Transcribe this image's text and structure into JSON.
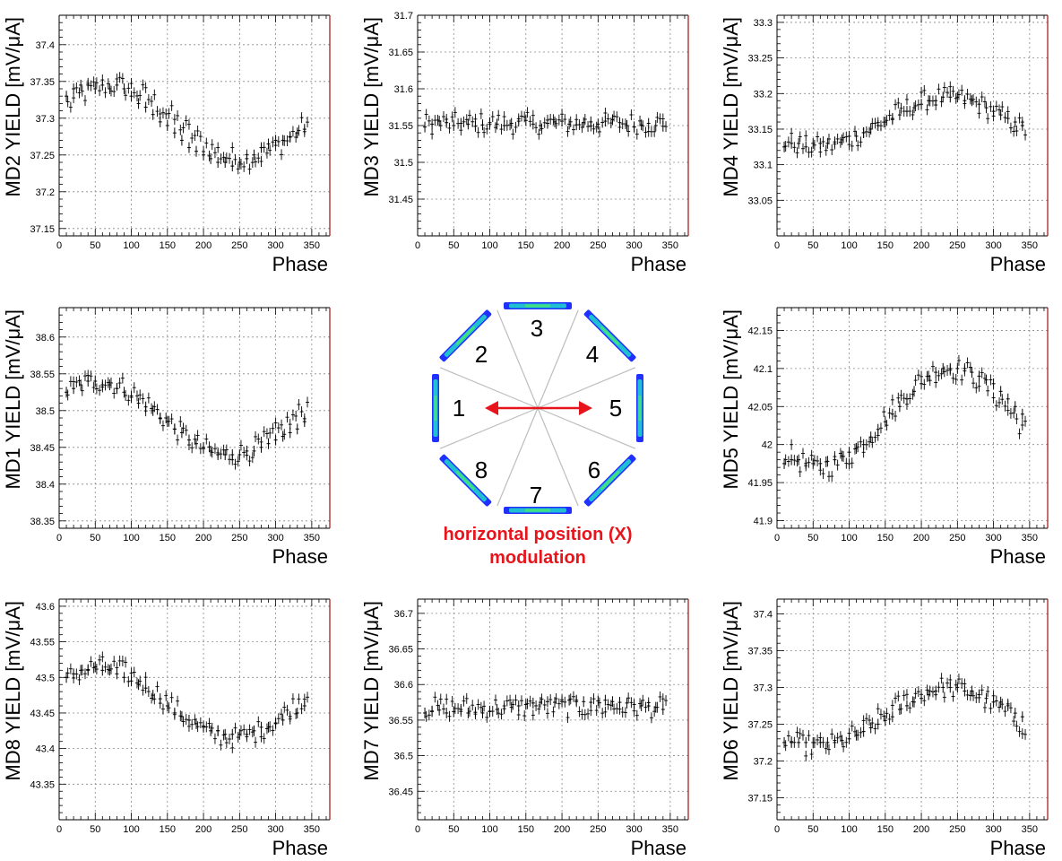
{
  "chart_data": [
    {
      "type": "scatter",
      "panel": "MD2",
      "ylabel": "MD2 YIELD [mV/μA]",
      "xlabel": "Phase",
      "xlim": [
        0,
        375
      ],
      "ylim": [
        37.14,
        37.44
      ],
      "xticks": [
        0,
        50,
        100,
        150,
        200,
        250,
        300,
        350
      ],
      "yticks": [
        37.15,
        37.2,
        37.25,
        37.3,
        37.35,
        37.4
      ],
      "ytick_labels": [
        "37.15",
        "37.2",
        "37.25",
        "37.3",
        "37.35",
        "37.4"
      ],
      "grid": true,
      "error_bars": true,
      "shape": {
        "kind": "cos",
        "a": 37.295,
        "b": 0.05,
        "phi": 75
      },
      "x": [
        10,
        20,
        30,
        40,
        50,
        60,
        70,
        80,
        90,
        100,
        110,
        120,
        130,
        140,
        150,
        160,
        170,
        180,
        190,
        200,
        210,
        220,
        230,
        240,
        250,
        260,
        270,
        280,
        290,
        300,
        310,
        320,
        330,
        340
      ],
      "y": [
        37.33,
        37.34,
        37.345,
        37.345,
        37.34,
        37.345,
        37.34,
        37.345,
        37.34,
        37.33,
        37.32,
        37.315,
        37.305,
        37.295,
        37.29,
        37.28,
        37.27,
        37.26,
        37.255,
        37.25,
        37.245,
        37.24,
        37.24,
        37.235,
        37.24,
        37.245,
        37.25,
        37.26,
        37.265,
        37.27,
        37.27,
        37.275,
        37.28,
        37.285
      ]
    },
    {
      "type": "scatter",
      "panel": "MD3",
      "ylabel": "MD3 YIELD [mV/μA]",
      "xlabel": "Phase",
      "xlim": [
        0,
        375
      ],
      "ylim": [
        31.4,
        31.7
      ],
      "xticks": [
        0,
        50,
        100,
        150,
        200,
        250,
        300,
        350
      ],
      "yticks": [
        31.45,
        31.5,
        31.55,
        31.6,
        31.65,
        31.7
      ],
      "ytick_labels": [
        "31.45",
        "31.5",
        "31.55",
        "31.6",
        "31.65",
        "31.7"
      ],
      "grid": true,
      "error_bars": true,
      "shape": {
        "kind": "flat",
        "a": 31.553
      },
      "x": [
        10,
        20,
        30,
        40,
        50,
        60,
        70,
        80,
        90,
        100,
        110,
        120,
        130,
        140,
        150,
        160,
        170,
        180,
        190,
        200,
        210,
        220,
        230,
        240,
        250,
        260,
        270,
        280,
        290,
        300,
        310,
        320,
        330,
        340
      ],
      "y": [
        31.548,
        31.552,
        31.556,
        31.554,
        31.55,
        31.553,
        31.552,
        31.549,
        31.551,
        31.554,
        31.552,
        31.55,
        31.553,
        31.556,
        31.557,
        31.552,
        31.55,
        31.553,
        31.555,
        31.556,
        31.552,
        31.551,
        31.554,
        31.555,
        31.552,
        31.556,
        31.558,
        31.554,
        31.55,
        31.548,
        31.551,
        31.553,
        31.55,
        31.549
      ]
    },
    {
      "type": "scatter",
      "panel": "MD4",
      "ylabel": "MD4 YIELD [mV/μA]",
      "xlabel": "Phase",
      "xlim": [
        0,
        375
      ],
      "ylim": [
        33.0,
        33.31
      ],
      "xticks": [
        0,
        50,
        100,
        150,
        200,
        250,
        300,
        350
      ],
      "yticks": [
        33.05,
        33.1,
        33.15,
        33.2,
        33.25,
        33.3
      ],
      "ytick_labels": [
        "33.05",
        "33.1",
        "33.15",
        "33.2",
        "33.25",
        "33.3"
      ],
      "grid": true,
      "error_bars": true,
      "shape": {
        "kind": "cos",
        "a": 33.16,
        "b": 0.035,
        "phi": 235
      },
      "x": [
        10,
        20,
        30,
        40,
        50,
        60,
        70,
        80,
        90,
        100,
        110,
        120,
        130,
        140,
        150,
        160,
        170,
        180,
        190,
        200,
        210,
        220,
        230,
        240,
        250,
        260,
        270,
        280,
        290,
        300,
        310,
        320,
        330,
        340
      ],
      "y": [
        33.125,
        33.13,
        33.13,
        33.125,
        33.13,
        33.13,
        33.13,
        33.132,
        33.135,
        33.14,
        33.14,
        33.145,
        33.15,
        33.155,
        33.16,
        33.165,
        33.17,
        33.175,
        33.18,
        33.185,
        33.19,
        33.19,
        33.195,
        33.195,
        33.195,
        33.19,
        33.19,
        33.185,
        33.18,
        33.175,
        33.17,
        33.165,
        33.16,
        33.155
      ]
    },
    {
      "type": "scatter",
      "panel": "MD1",
      "ylabel": "MD1 YIELD [mV/μA]",
      "xlabel": "Phase",
      "xlim": [
        0,
        375
      ],
      "ylim": [
        38.34,
        38.64
      ],
      "xticks": [
        0,
        50,
        100,
        150,
        200,
        250,
        300,
        350
      ],
      "yticks": [
        38.35,
        38.4,
        38.45,
        38.5,
        38.55,
        38.6
      ],
      "ytick_labels": [
        "38.35",
        "38.4",
        "38.45",
        "38.5",
        "38.55",
        "38.6"
      ],
      "grid": true,
      "error_bars": true,
      "shape": {
        "kind": "cos",
        "a": 38.49,
        "b": 0.05,
        "phi": 55
      },
      "x": [
        10,
        20,
        30,
        40,
        50,
        60,
        70,
        80,
        90,
        100,
        110,
        120,
        130,
        140,
        150,
        160,
        170,
        180,
        190,
        200,
        210,
        220,
        230,
        240,
        250,
        260,
        270,
        280,
        290,
        300,
        310,
        320,
        330,
        340
      ],
      "y": [
        38.525,
        38.53,
        38.535,
        38.54,
        38.54,
        38.535,
        38.535,
        38.53,
        38.525,
        38.52,
        38.51,
        38.505,
        38.5,
        38.49,
        38.485,
        38.475,
        38.47,
        38.46,
        38.455,
        38.45,
        38.445,
        38.44,
        38.44,
        38.44,
        38.44,
        38.445,
        38.445,
        38.45,
        38.455,
        38.46,
        38.465,
        38.47,
        38.475,
        38.485
      ]
    },
    {
      "type": "scatter",
      "panel": "MD5",
      "ylabel": "MD5 YIELD [mV/μA]",
      "xlabel": "Phase",
      "xlim": [
        0,
        375
      ],
      "ylim": [
        41.89,
        42.18
      ],
      "xticks": [
        0,
        50,
        100,
        150,
        200,
        250,
        300,
        350
      ],
      "yticks": [
        41.9,
        41.95,
        42.0,
        42.05,
        42.1,
        42.15
      ],
      "ytick_labels": [
        "41.9",
        "41.95",
        "42",
        "42.05",
        "42.1",
        "42.15"
      ],
      "grid": true,
      "error_bars": true,
      "shape": {
        "kind": "cos",
        "a": 42.035,
        "b": 0.065,
        "phi": 240
      },
      "x": [
        10,
        20,
        30,
        40,
        50,
        60,
        70,
        80,
        90,
        100,
        110,
        120,
        130,
        140,
        150,
        160,
        170,
        180,
        190,
        200,
        210,
        220,
        230,
        240,
        250,
        260,
        270,
        280,
        290,
        300,
        310,
        320,
        330,
        340
      ],
      "y": [
        41.975,
        41.98,
        41.98,
        41.975,
        41.975,
        41.975,
        41.978,
        41.98,
        41.985,
        41.99,
        41.995,
        42.0,
        42.01,
        42.02,
        42.03,
        42.04,
        42.05,
        42.06,
        42.07,
        42.08,
        42.09,
        42.095,
        42.1,
        42.1,
        42.1,
        42.1,
        42.095,
        42.09,
        42.085,
        42.08,
        42.07,
        42.06,
        42.05,
        42.04
      ]
    },
    {
      "type": "scatter",
      "panel": "MD8",
      "ylabel": "MD8 YIELD [mV/μA]",
      "xlabel": "Phase",
      "xlim": [
        0,
        375
      ],
      "ylim": [
        43.3,
        43.61
      ],
      "xticks": [
        0,
        50,
        100,
        150,
        200,
        250,
        300,
        350
      ],
      "yticks": [
        43.35,
        43.4,
        43.45,
        43.5,
        43.55,
        43.6
      ],
      "ytick_labels": [
        "43.35",
        "43.4",
        "43.45",
        "43.5",
        "43.55",
        "43.6"
      ],
      "grid": true,
      "error_bars": true,
      "shape": {
        "kind": "cos",
        "a": 43.465,
        "b": 0.05,
        "phi": 60
      },
      "x": [
        10,
        20,
        30,
        40,
        50,
        60,
        70,
        80,
        90,
        100,
        110,
        120,
        130,
        140,
        150,
        160,
        170,
        180,
        190,
        200,
        210,
        220,
        230,
        240,
        250,
        260,
        270,
        280,
        290,
        300,
        310,
        320,
        330,
        340
      ],
      "y": [
        43.5,
        43.505,
        43.51,
        43.51,
        43.515,
        43.51,
        43.51,
        43.505,
        43.5,
        43.495,
        43.49,
        43.485,
        43.475,
        43.47,
        43.46,
        43.45,
        43.445,
        43.44,
        43.435,
        43.43,
        43.425,
        43.425,
        43.42,
        43.42,
        43.42,
        43.42,
        43.425,
        43.43,
        43.43,
        43.435,
        43.44,
        43.445,
        43.45,
        43.46
      ]
    },
    {
      "type": "scatter",
      "panel": "MD7",
      "ylabel": "MD7 YIELD [mV/μA]",
      "xlabel": "Phase",
      "xlim": [
        0,
        375
      ],
      "ylim": [
        36.41,
        36.72
      ],
      "xticks": [
        0,
        50,
        100,
        150,
        200,
        250,
        300,
        350
      ],
      "yticks": [
        36.45,
        36.5,
        36.55,
        36.6,
        36.65,
        36.7
      ],
      "ytick_labels": [
        "36.45",
        "36.5",
        "36.55",
        "36.6",
        "36.65",
        "36.7"
      ],
      "grid": true,
      "error_bars": true,
      "shape": {
        "kind": "flat",
        "a": 36.568
      },
      "x": [
        10,
        20,
        30,
        40,
        50,
        60,
        70,
        80,
        90,
        100,
        110,
        120,
        130,
        140,
        150,
        160,
        170,
        180,
        190,
        200,
        210,
        220,
        230,
        240,
        250,
        260,
        270,
        280,
        290,
        300,
        310,
        320,
        330,
        340
      ],
      "y": [
        36.56,
        36.562,
        36.564,
        36.56,
        36.562,
        36.565,
        36.56,
        36.561,
        36.56,
        36.562,
        36.565,
        36.566,
        36.568,
        36.57,
        36.572,
        36.574,
        36.575,
        36.576,
        36.575,
        36.576,
        36.578,
        36.578,
        36.576,
        36.575,
        36.577,
        36.578,
        36.576,
        36.575,
        36.574,
        36.572,
        36.57,
        36.57,
        36.568,
        36.565
      ]
    },
    {
      "type": "scatter",
      "panel": "MD6",
      "ylabel": "MD6 YIELD [mV/μA]",
      "xlabel": "Phase",
      "xlim": [
        0,
        375
      ],
      "ylim": [
        37.12,
        37.42
      ],
      "xticks": [
        0,
        50,
        100,
        150,
        200,
        250,
        300,
        350
      ],
      "yticks": [
        37.15,
        37.2,
        37.25,
        37.3,
        37.35,
        37.4
      ],
      "ytick_labels": [
        "37.15",
        "37.2",
        "37.25",
        "37.3",
        "37.35",
        "37.4"
      ],
      "grid": true,
      "error_bars": true,
      "shape": {
        "kind": "cos",
        "a": 37.26,
        "b": 0.04,
        "phi": 235
      },
      "x": [
        10,
        20,
        30,
        40,
        50,
        60,
        70,
        80,
        90,
        100,
        110,
        120,
        130,
        140,
        150,
        160,
        170,
        180,
        190,
        200,
        210,
        220,
        230,
        240,
        250,
        260,
        270,
        280,
        290,
        300,
        310,
        320,
        330,
        340
      ],
      "y": [
        37.225,
        37.225,
        37.225,
        37.225,
        37.225,
        37.225,
        37.225,
        37.225,
        37.228,
        37.23,
        37.235,
        37.24,
        37.245,
        37.25,
        37.255,
        37.26,
        37.27,
        37.275,
        37.28,
        37.285,
        37.29,
        37.295,
        37.3,
        37.3,
        37.3,
        37.295,
        37.295,
        37.29,
        37.285,
        37.28,
        37.28,
        37.275,
        37.265,
        37.26
      ]
    }
  ],
  "diagram": {
    "octants": [
      "1",
      "2",
      "3",
      "4",
      "5",
      "6",
      "7",
      "8"
    ],
    "caption_line1": "horizontal position (X)",
    "caption_line2": "modulation",
    "arrow_color": "#e8141b",
    "caption_color": "#e8141b"
  }
}
